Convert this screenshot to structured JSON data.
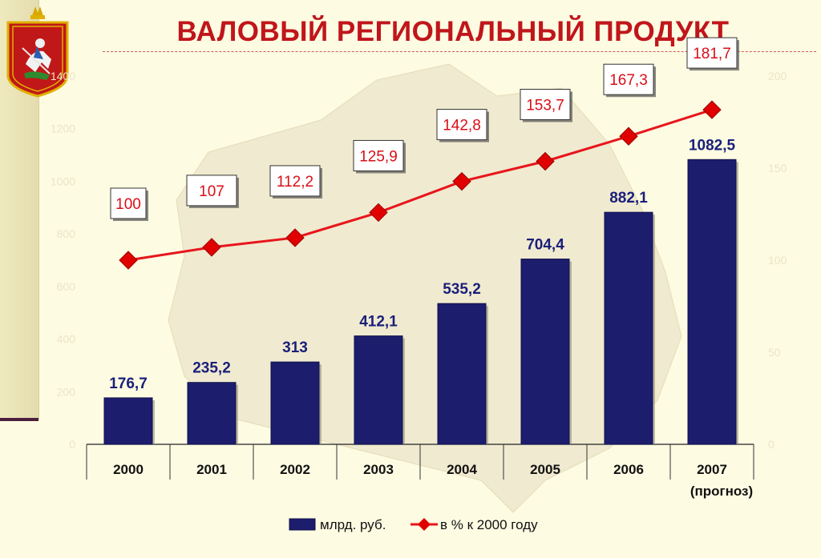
{
  "title": "ВАЛОВЫЙ РЕГИОНАЛЬНЫЙ ПРОДУКТ",
  "emblem": "moscow-oblast-coat-of-arms",
  "colors": {
    "title": "#c0161b",
    "bar": "#1d1d6e",
    "line": "#e8151b",
    "marker": "#e00000",
    "bar_label": "#1a1f7a",
    "line_label": "#d80f17"
  },
  "chart_data": {
    "type": "bar+line",
    "categories": [
      "2000",
      "2001",
      "2002",
      "2003",
      "2004",
      "2005",
      "2006",
      "2007\n(прогноз)"
    ],
    "series": [
      {
        "name": "млрд. руб.",
        "type": "bar",
        "axis": "left",
        "values": [
          176.7,
          235.2,
          313,
          412.1,
          535.2,
          704.4,
          882.1,
          1082.5
        ],
        "labels": [
          "176,7",
          "235,2",
          "313",
          "412,1",
          "535,2",
          "704,4",
          "882,1",
          "1082,5"
        ]
      },
      {
        "name": "в % к 2000 году",
        "type": "line",
        "axis": "right",
        "values": [
          100,
          107,
          112.2,
          125.9,
          142.8,
          153.7,
          167.3,
          181.7
        ],
        "labels": [
          "100",
          "107",
          "112,2",
          "125,9",
          "142,8",
          "153,7",
          "167,3",
          "181,7"
        ]
      }
    ],
    "y_left": {
      "range": [
        0,
        1400
      ],
      "ticks": [
        "0",
        "200",
        "400",
        "600",
        "800",
        "1000",
        "1200",
        "1400"
      ]
    },
    "y_right": {
      "range": [
        0,
        200
      ],
      "ticks": [
        "0",
        "50",
        "100",
        "150",
        "200"
      ]
    },
    "legend": {
      "position": "bottom",
      "items": [
        "млрд. руб.",
        "в % к 2000 году"
      ]
    },
    "grid": false
  }
}
